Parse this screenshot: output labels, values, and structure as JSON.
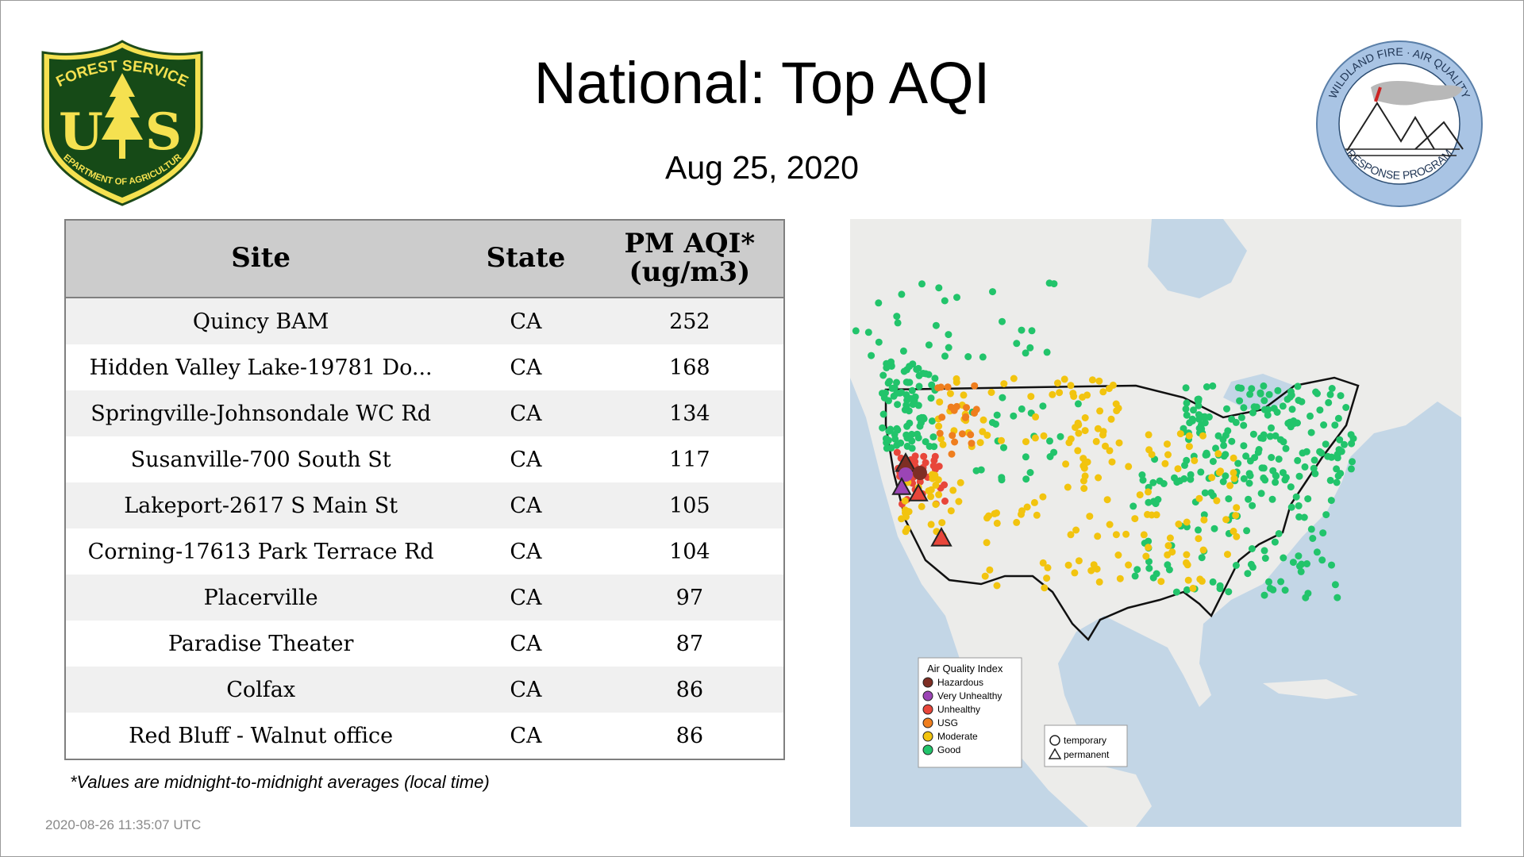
{
  "header": {
    "title": "National: Top AQI",
    "date": "Aug 25, 2020"
  },
  "logos": {
    "forest_service": {
      "top_text": "FOREST SERVICE",
      "letters_left": "U",
      "letters_right": "S",
      "bottom_text": "DEPARTMENT OF AGRICULTURE",
      "icon": "pine-tree-shield"
    },
    "wildland_fire": {
      "top_text": "WILDLAND FIRE · AIR QUALITY",
      "bottom_text": "RESPONSE PROGRAM",
      "icon": "mountains-smoke-circle"
    }
  },
  "table": {
    "headers": {
      "site": "Site",
      "state": "State",
      "aqi_line1": "PM AQI*",
      "aqi_line2": "(ug/m3)"
    },
    "rows": [
      {
        "site": "Quincy BAM",
        "state": "CA",
        "aqi": "252"
      },
      {
        "site": "Hidden Valley Lake-19781 Do...",
        "state": "CA",
        "aqi": "168"
      },
      {
        "site": "Springville-Johnsondale WC Rd",
        "state": "CA",
        "aqi": "134"
      },
      {
        "site": "Susanville-700 South St",
        "state": "CA",
        "aqi": "117"
      },
      {
        "site": "Lakeport-2617 S Main St",
        "state": "CA",
        "aqi": "105"
      },
      {
        "site": "Corning-17613 Park Terrace Rd",
        "state": "CA",
        "aqi": "104"
      },
      {
        "site": "Placerville",
        "state": "CA",
        "aqi": "97"
      },
      {
        "site": "Paradise Theater",
        "state": "CA",
        "aqi": "87"
      },
      {
        "site": "Colfax",
        "state": "CA",
        "aqi": "86"
      },
      {
        "site": "Red Bluff - Walnut office",
        "state": "CA",
        "aqi": "86"
      }
    ]
  },
  "footnote": "*Values are midnight-to-midnight averages (local time)",
  "timestamp": "2020-08-26 11:35:07 UTC",
  "map": {
    "legend_title": "Air Quality Index",
    "categories": [
      {
        "label": "Hazardous",
        "color": "#7e2e24"
      },
      {
        "label": "Very Unhealthy",
        "color": "#9b45b5"
      },
      {
        "label": "Unhealthy",
        "color": "#e8463a"
      },
      {
        "label": "USG",
        "color": "#ef7e1e"
      },
      {
        "label": "Moderate",
        "color": "#f2c40f"
      },
      {
        "label": "Good",
        "color": "#22c46b"
      }
    ],
    "type_legend": {
      "temporary": "temporary",
      "permanent": "permanent"
    },
    "colors": {
      "water": "#c3d6e6",
      "land": "#ececea"
    }
  }
}
